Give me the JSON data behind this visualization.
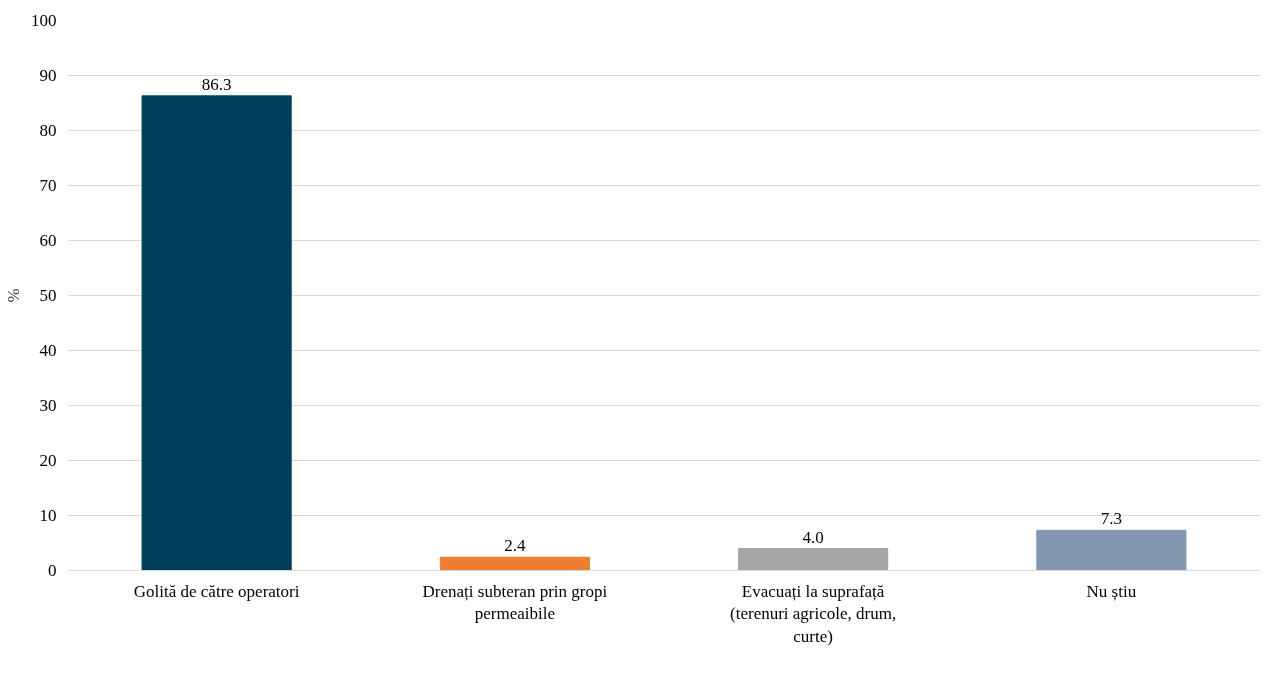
{
  "chart_data": {
    "type": "bar",
    "ylabel": "%",
    "categories": [
      "Golită de către operatori",
      "Drenați subteran prin gropi permeaibile",
      "Evacuați la suprafață (terenuri agricole, drum, curte)",
      "Nu știu"
    ],
    "values": [
      86.3,
      2.4,
      4.0,
      7.3
    ],
    "colors": [
      "#003f5c",
      "#ed7d31",
      "#a5a5a5",
      "#8497b0"
    ],
    "value_labels": [
      "86.3",
      "2.4",
      "4.0",
      "7.3"
    ],
    "ylim": [
      0,
      100
    ],
    "yticks": [
      0,
      10,
      20,
      30,
      40,
      50,
      60,
      70,
      80,
      90,
      100
    ],
    "grid": "y"
  }
}
